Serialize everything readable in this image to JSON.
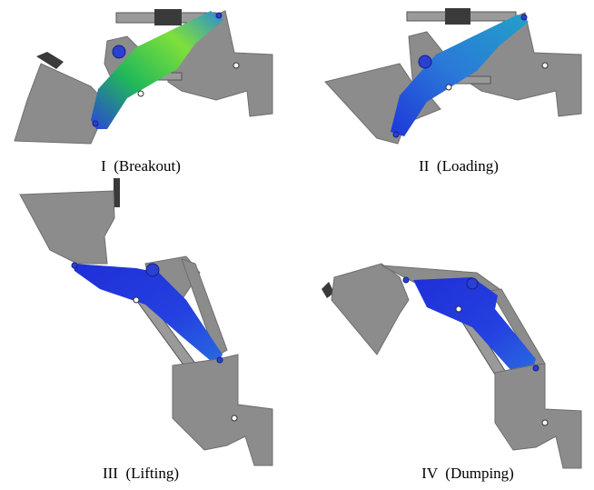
{
  "figures": [
    {
      "caption": "I  (Breakout)"
    },
    {
      "caption": "II  (Loading)"
    },
    {
      "caption": "III  (Lifting)"
    },
    {
      "caption": "IV  (Dumping)"
    }
  ]
}
